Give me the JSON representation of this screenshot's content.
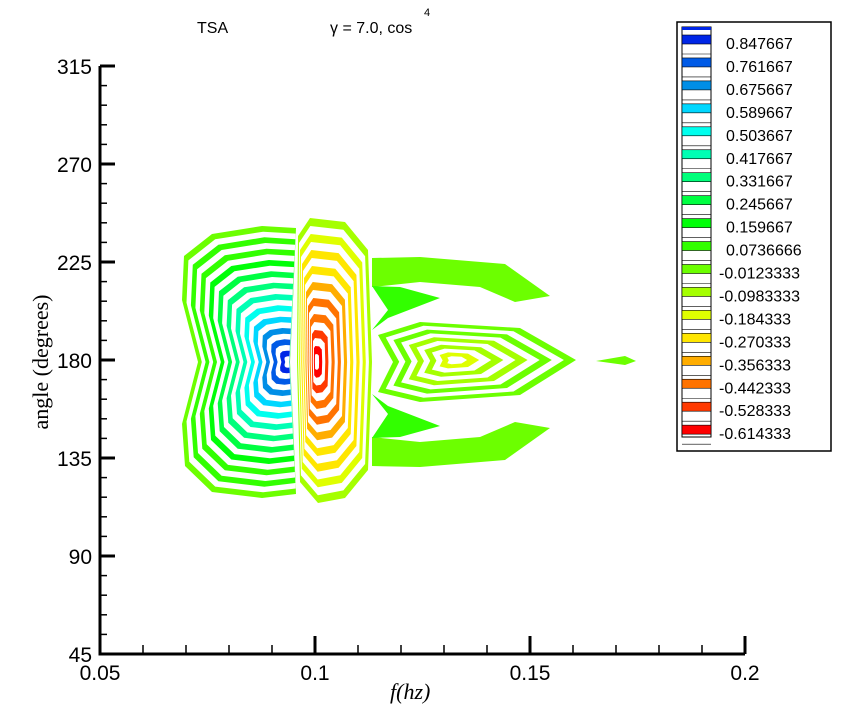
{
  "chart_data": {
    "type": "contour",
    "title_left": "TSA",
    "title_right": "γ  = 7.0, cos",
    "title_superscript": "4",
    "xlabel": "f(hz)",
    "ylabel": "angle (degrees)",
    "xlim": [
      0.05,
      0.2
    ],
    "ylim": [
      45,
      315
    ],
    "xticks": [
      "0.05",
      "0.1",
      "0.15",
      "0.2"
    ],
    "xtick_values": [
      0.05,
      0.1,
      0.15,
      0.2
    ],
    "x_minor_step": 0.01,
    "yticks": [
      "45",
      "90",
      "135",
      "180",
      "225",
      "270",
      "315"
    ],
    "ytick_values": [
      45,
      90,
      135,
      180,
      225,
      270,
      315
    ],
    "y_minor_step": 9,
    "grid": false,
    "legend_placement": "top-right",
    "colormap": "jet (blue high, red low)",
    "levels": [
      "0.847667",
      "0.761667",
      "0.675667",
      "0.589667",
      "0.503667",
      "0.417667",
      "0.331667",
      "0.245667",
      "0.159667",
      "0.0736666",
      "-0.0123333",
      "-0.0983333",
      "-0.184333",
      "-0.270333",
      "-0.356333",
      "-0.442333",
      "-0.528333",
      "-0.614333"
    ],
    "features": [
      {
        "name": "positive lobe",
        "x_center": 0.094,
        "y_center": 180,
        "peak_level": "0.847667"
      },
      {
        "name": "negative lobe",
        "x_center": 0.102,
        "y_center": 180,
        "peak_level": "-0.614333"
      },
      {
        "name": "secondary lobe",
        "x_center": 0.13,
        "y_center": 180,
        "peak_level": "-0.184333"
      }
    ]
  }
}
